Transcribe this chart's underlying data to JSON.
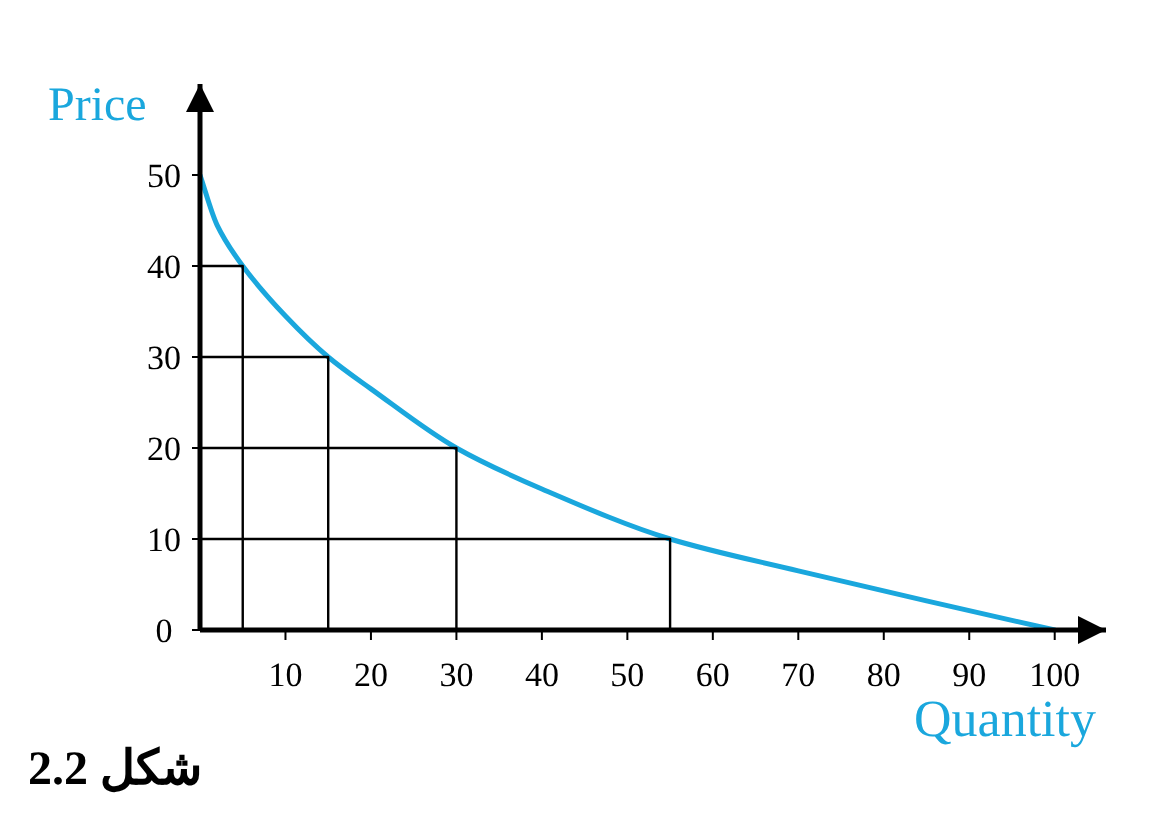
{
  "chart_data": {
    "type": "line",
    "xlabel": "Quantity",
    "ylabel": "Price",
    "annotations": [
      "شكل 2.2"
    ],
    "xlim": [
      0,
      106
    ],
    "ylim": [
      0,
      60
    ],
    "xticks": [
      10,
      20,
      30,
      40,
      50,
      60,
      70,
      80,
      90,
      100
    ],
    "yticks": [
      0,
      10,
      20,
      30,
      40,
      50
    ],
    "series": [
      {
        "color": "#1aa7dd",
        "x": [
          0,
          2,
          5,
          10,
          15,
          20,
          30,
          40,
          55,
          70,
          85,
          100
        ],
        "values": [
          50,
          44.5,
          40,
          34.5,
          30,
          26.5,
          20,
          15.5,
          10,
          6.5,
          3.2,
          0
        ]
      },
      {
        "color": "#000000",
        "x": [
          0,
          5,
          5
        ],
        "values": [
          40,
          40,
          0
        ]
      },
      {
        "color": "#000000",
        "x": [
          0,
          15,
          15
        ],
        "values": [
          30,
          30,
          0
        ]
      },
      {
        "color": "#000000",
        "x": [
          0,
          30,
          30
        ],
        "values": [
          20,
          20,
          0
        ]
      },
      {
        "color": "#000000",
        "x": [
          0,
          55,
          55
        ],
        "values": [
          10,
          10,
          0
        ]
      }
    ]
  }
}
